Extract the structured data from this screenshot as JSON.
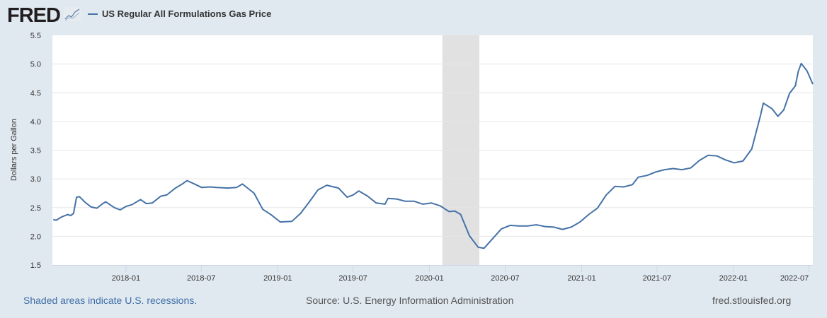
{
  "header": {
    "logo": "FRED",
    "series_name": "US Regular All Formulations Gas Price"
  },
  "footer": {
    "recession_note": "Shaded areas indicate U.S. recessions.",
    "source": "Source: U.S. Energy Information Administration",
    "site": "fred.stlouisfed.org"
  },
  "colors": {
    "line": "#4572a7",
    "recession": "#e1e1e1",
    "background": "#e1e9f0"
  },
  "chart_data": {
    "type": "line",
    "title": "US Regular All Formulations Gas Price",
    "xlabel": "",
    "ylabel": "Dollars per Gallon",
    "ylim": [
      1.5,
      5.5
    ],
    "xlim": [
      "2017-07-08",
      "2022-07-11"
    ],
    "yticks": [
      "1.5",
      "2.0",
      "2.5",
      "3.0",
      "3.5",
      "4.0",
      "4.5",
      "5.0",
      "5.5"
    ],
    "xticks": [
      "2018-01",
      "2018-07",
      "2019-01",
      "2019-07",
      "2020-01",
      "2020-07",
      "2021-01",
      "2021-07",
      "2022-01",
      "2022-07"
    ],
    "grid": true,
    "legend": "top-left",
    "recessions": [
      [
        "2020-02-01",
        "2020-04-30"
      ]
    ],
    "series": [
      {
        "name": "US Regular All Formulations Gas Price",
        "points": [
          [
            "2017-07-10",
            2.29
          ],
          [
            "2017-07-17",
            2.28
          ],
          [
            "2017-07-31",
            2.34
          ],
          [
            "2017-08-14",
            2.38
          ],
          [
            "2017-08-21",
            2.36
          ],
          [
            "2017-08-28",
            2.4
          ],
          [
            "2017-09-04",
            2.68
          ],
          [
            "2017-09-11",
            2.69
          ],
          [
            "2017-09-25",
            2.59
          ],
          [
            "2017-10-09",
            2.51
          ],
          [
            "2017-10-23",
            2.49
          ],
          [
            "2017-11-06",
            2.57
          ],
          [
            "2017-11-13",
            2.6
          ],
          [
            "2017-12-04",
            2.5
          ],
          [
            "2017-12-18",
            2.46
          ],
          [
            "2018-01-01",
            2.52
          ],
          [
            "2018-01-15",
            2.55
          ],
          [
            "2018-02-05",
            2.64
          ],
          [
            "2018-02-19",
            2.57
          ],
          [
            "2018-03-05",
            2.58
          ],
          [
            "2018-03-26",
            2.7
          ],
          [
            "2018-04-09",
            2.72
          ],
          [
            "2018-04-30",
            2.84
          ],
          [
            "2018-05-14",
            2.9
          ],
          [
            "2018-05-28",
            2.97
          ],
          [
            "2018-06-18",
            2.9
          ],
          [
            "2018-07-02",
            2.85
          ],
          [
            "2018-07-23",
            2.86
          ],
          [
            "2018-08-06",
            2.85
          ],
          [
            "2018-09-03",
            2.84
          ],
          [
            "2018-09-24",
            2.85
          ],
          [
            "2018-10-08",
            2.91
          ],
          [
            "2018-11-05",
            2.75
          ],
          [
            "2018-11-26",
            2.47
          ],
          [
            "2018-12-17",
            2.37
          ],
          [
            "2019-01-07",
            2.25
          ],
          [
            "2019-02-04",
            2.26
          ],
          [
            "2019-02-25",
            2.4
          ],
          [
            "2019-03-18",
            2.6
          ],
          [
            "2019-04-08",
            2.81
          ],
          [
            "2019-04-29",
            2.89
          ],
          [
            "2019-05-27",
            2.84
          ],
          [
            "2019-06-17",
            2.68
          ],
          [
            "2019-07-01",
            2.72
          ],
          [
            "2019-07-15",
            2.79
          ],
          [
            "2019-08-05",
            2.7
          ],
          [
            "2019-08-26",
            2.58
          ],
          [
            "2019-09-16",
            2.56
          ],
          [
            "2019-09-23",
            2.66
          ],
          [
            "2019-10-14",
            2.65
          ],
          [
            "2019-11-04",
            2.61
          ],
          [
            "2019-11-25",
            2.61
          ],
          [
            "2019-12-16",
            2.56
          ],
          [
            "2020-01-06",
            2.58
          ],
          [
            "2020-01-27",
            2.53
          ],
          [
            "2020-02-17",
            2.43
          ],
          [
            "2020-03-02",
            2.44
          ],
          [
            "2020-03-16",
            2.38
          ],
          [
            "2020-04-06",
            2.01
          ],
          [
            "2020-04-27",
            1.81
          ],
          [
            "2020-05-11",
            1.79
          ],
          [
            "2020-06-01",
            1.96
          ],
          [
            "2020-06-22",
            2.13
          ],
          [
            "2020-07-13",
            2.19
          ],
          [
            "2020-08-03",
            2.18
          ],
          [
            "2020-08-24",
            2.18
          ],
          [
            "2020-09-14",
            2.2
          ],
          [
            "2020-10-05",
            2.17
          ],
          [
            "2020-10-26",
            2.16
          ],
          [
            "2020-11-16",
            2.12
          ],
          [
            "2020-12-07",
            2.16
          ],
          [
            "2020-12-28",
            2.25
          ],
          [
            "2021-01-18",
            2.38
          ],
          [
            "2021-02-08",
            2.49
          ],
          [
            "2021-03-01",
            2.72
          ],
          [
            "2021-03-22",
            2.87
          ],
          [
            "2021-04-12",
            2.86
          ],
          [
            "2021-05-03",
            2.9
          ],
          [
            "2021-05-17",
            3.03
          ],
          [
            "2021-06-07",
            3.06
          ],
          [
            "2021-06-28",
            3.12
          ],
          [
            "2021-07-19",
            3.16
          ],
          [
            "2021-08-09",
            3.18
          ],
          [
            "2021-08-30",
            3.16
          ],
          [
            "2021-09-20",
            3.19
          ],
          [
            "2021-10-11",
            3.32
          ],
          [
            "2021-11-01",
            3.41
          ],
          [
            "2021-11-22",
            3.4
          ],
          [
            "2021-12-13",
            3.33
          ],
          [
            "2022-01-03",
            3.28
          ],
          [
            "2022-01-24",
            3.31
          ],
          [
            "2022-02-14",
            3.52
          ],
          [
            "2022-03-07",
            4.1
          ],
          [
            "2022-03-14",
            4.32
          ],
          [
            "2022-04-04",
            4.22
          ],
          [
            "2022-04-18",
            4.09
          ],
          [
            "2022-05-02",
            4.2
          ],
          [
            "2022-05-16",
            4.49
          ],
          [
            "2022-05-30",
            4.62
          ],
          [
            "2022-06-06",
            4.87
          ],
          [
            "2022-06-13",
            5.01
          ],
          [
            "2022-06-27",
            4.88
          ],
          [
            "2022-07-11",
            4.65
          ]
        ]
      }
    ]
  }
}
